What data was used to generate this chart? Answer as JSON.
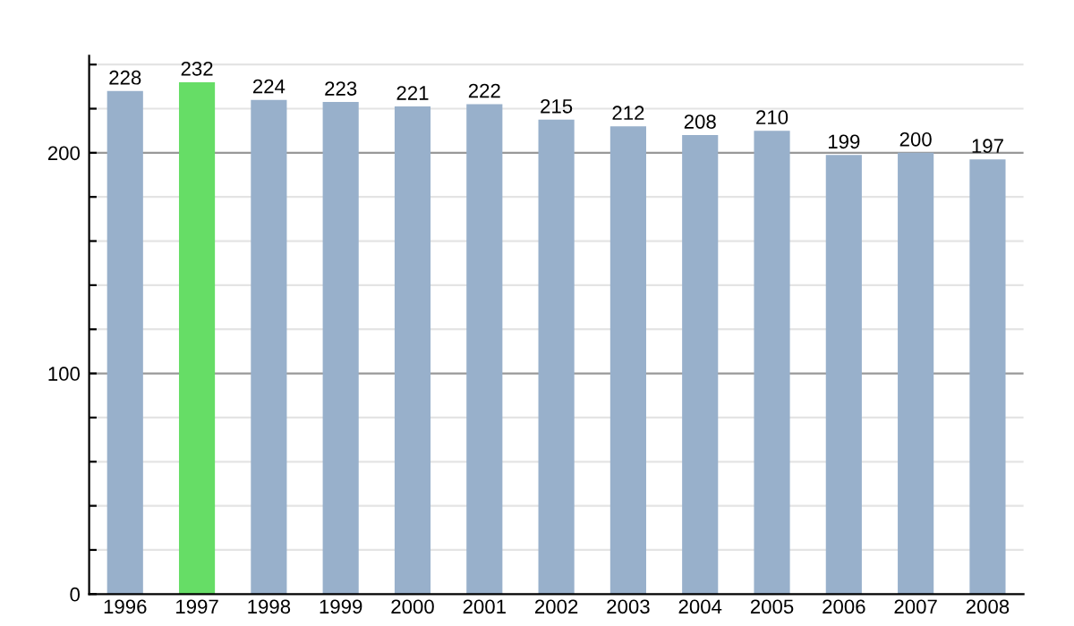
{
  "chart_data": {
    "type": "bar",
    "categories": [
      "1996",
      "1997",
      "1998",
      "1999",
      "2000",
      "2001",
      "2002",
      "2003",
      "2004",
      "2005",
      "2006",
      "2007",
      "2008"
    ],
    "values": [
      228,
      232,
      224,
      223,
      221,
      222,
      215,
      212,
      208,
      210,
      199,
      200,
      197
    ],
    "colors": [
      "#98b0cb",
      "#66dd66",
      "#98b0cb",
      "#98b0cb",
      "#98b0cb",
      "#98b0cb",
      "#98b0cb",
      "#98b0cb",
      "#98b0cb",
      "#98b0cb",
      "#98b0cb",
      "#98b0cb",
      "#98b0cb"
    ],
    "data_labels": true,
    "ylim": [
      0,
      244
    ],
    "yticks": [
      0,
      {
        "value": 20,
        "label": null
      },
      {
        "value": 40,
        "label": null
      },
      {
        "value": 60,
        "label": null
      },
      {
        "value": 80,
        "label": null
      },
      100,
      {
        "value": 120,
        "label": null
      },
      {
        "value": 140,
        "label": null
      },
      {
        "value": 160,
        "label": null
      },
      {
        "value": 180,
        "label": null
      },
      200,
      {
        "value": 220,
        "label": null
      },
      {
        "value": 240,
        "label": null
      }
    ],
    "grid": "y"
  }
}
